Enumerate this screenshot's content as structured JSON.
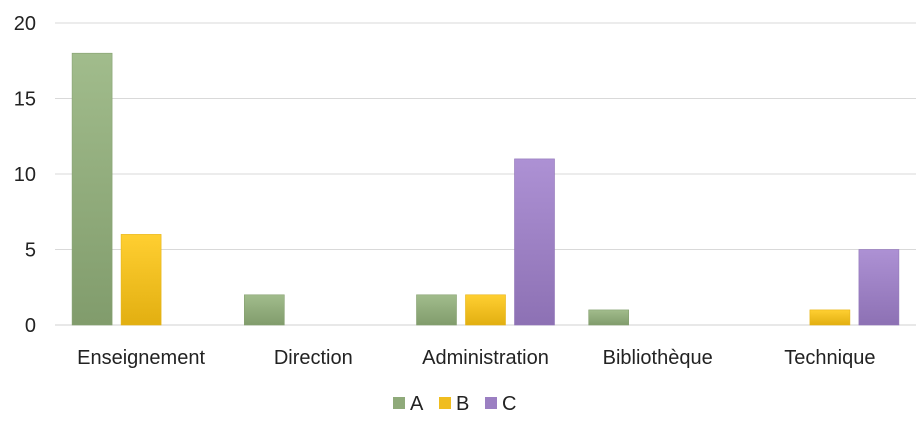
{
  "chart_data": {
    "type": "bar",
    "categories": [
      "Enseignement",
      "Direction",
      "Administration",
      "Bibliothèque",
      "Technique"
    ],
    "series": [
      {
        "name": "A",
        "values": [
          18,
          2,
          2,
          1,
          0
        ],
        "color": "#8faa7a"
      },
      {
        "name": "B",
        "values": [
          6,
          0,
          2,
          0,
          1
        ],
        "color": "#f0bd1f"
      },
      {
        "name": "C",
        "values": [
          0,
          0,
          11,
          0,
          5
        ],
        "color": "#9b7fc2"
      }
    ],
    "ylim": [
      0,
      20
    ],
    "yticks": [
      0,
      5,
      10,
      15,
      20
    ],
    "grid": true,
    "legend_position": "bottom-center"
  }
}
